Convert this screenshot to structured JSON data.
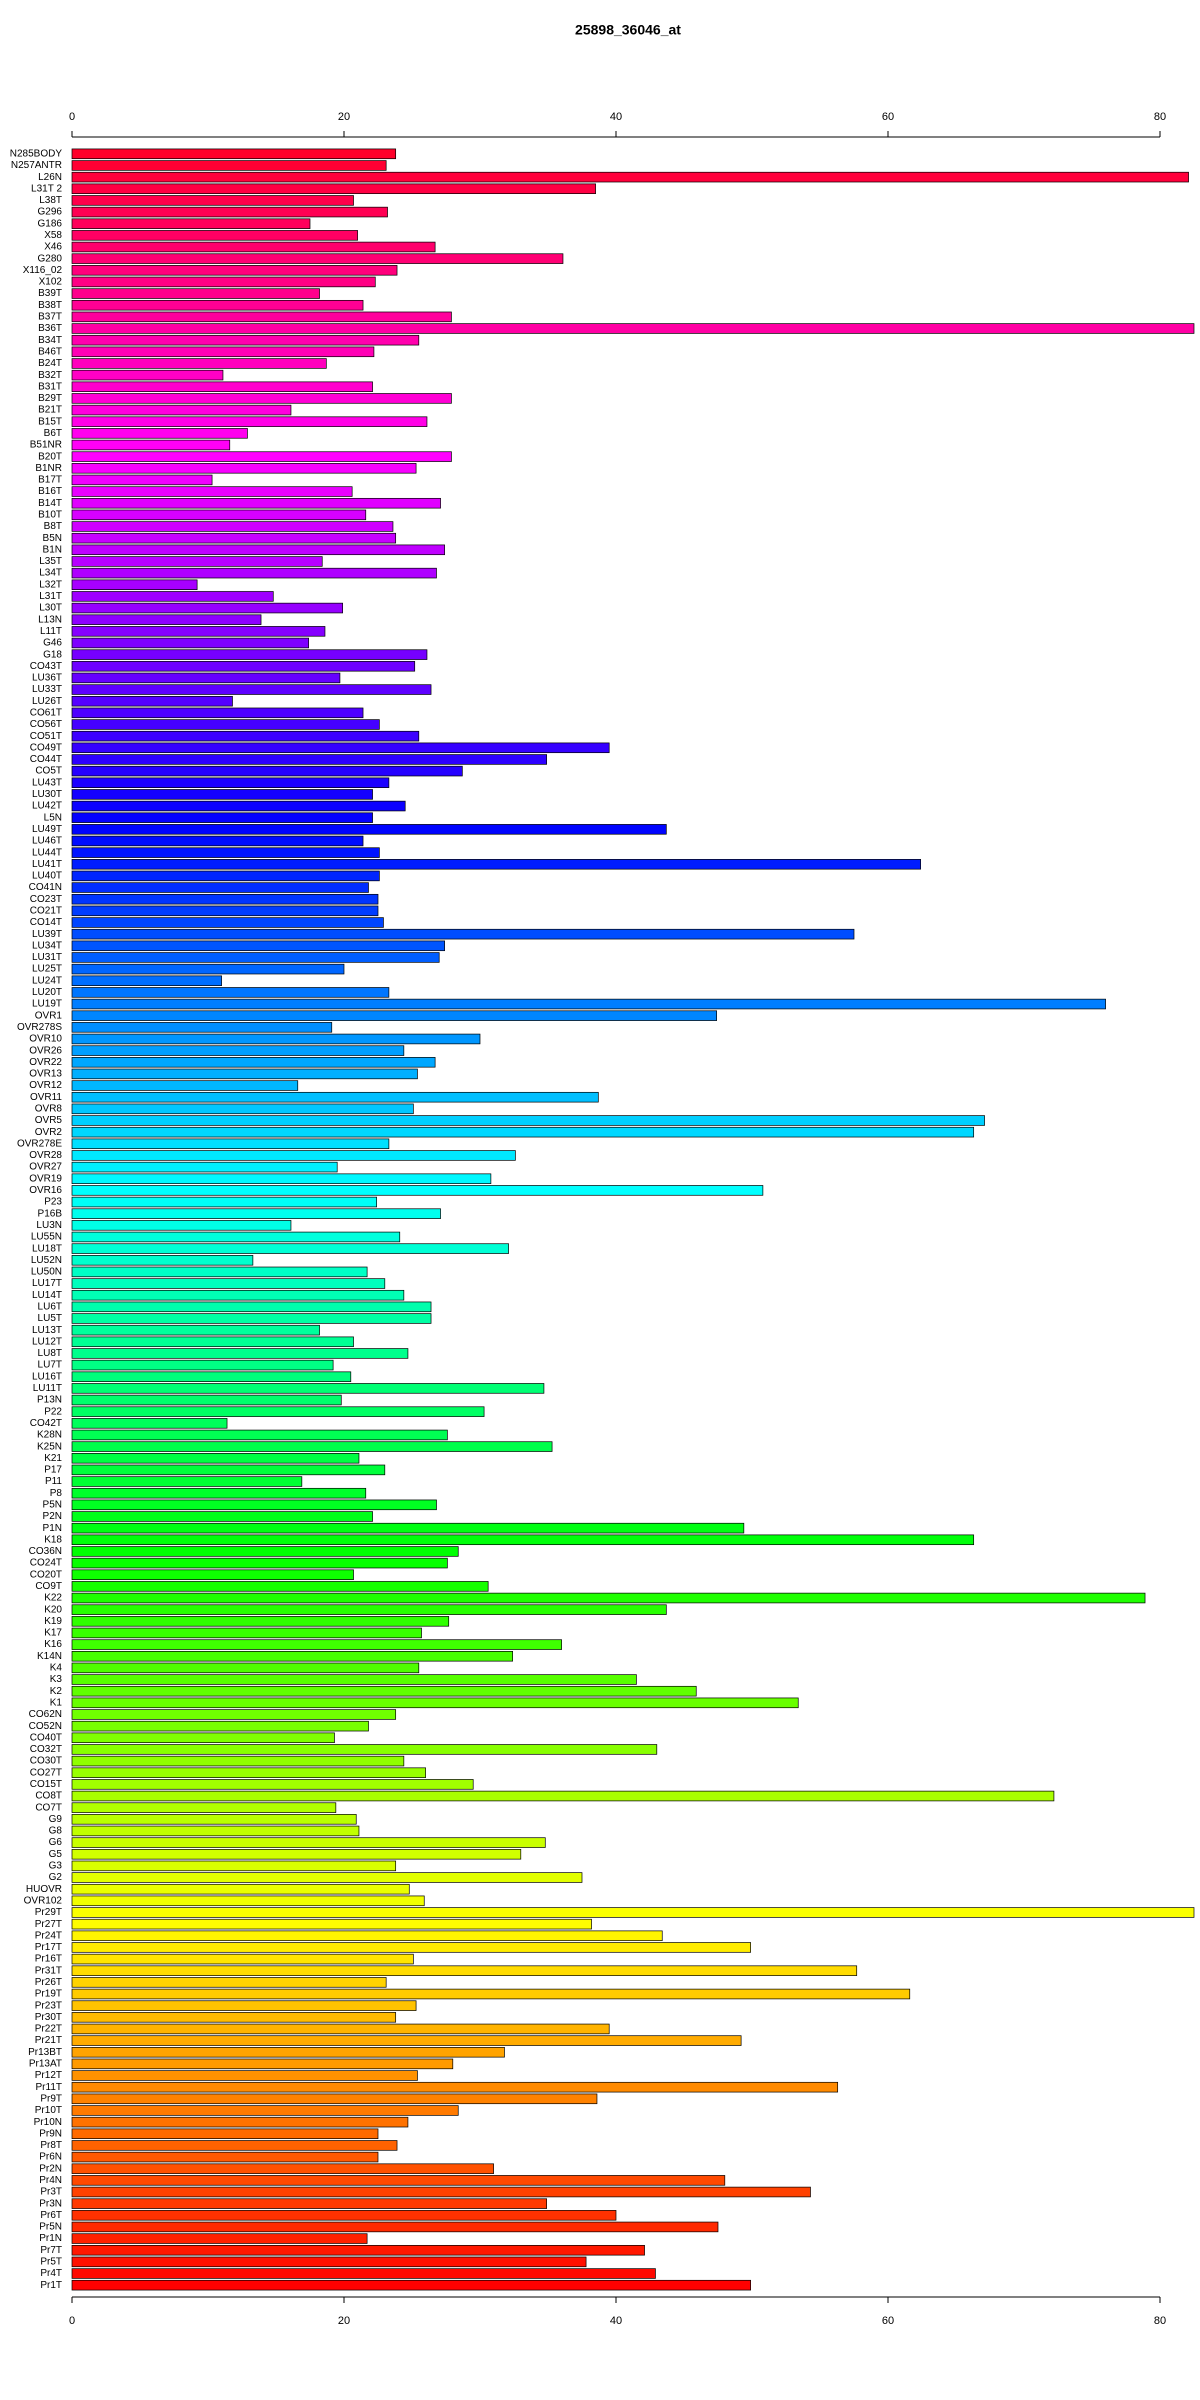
{
  "chart_data": {
    "type": "barh",
    "title": "25898_36046_at",
    "categories": [
      "N285BODY",
      "N257ANTR",
      "L26N",
      "L31T 2",
      "L38T",
      "G296",
      "G186",
      "X58",
      "X46",
      "G280",
      "X116_02",
      "X102",
      "B39T",
      "B38T",
      "B37T",
      "B36T",
      "B34T",
      "B46T",
      "B24T",
      "B32T",
      "B31T",
      "B29T",
      "B21T",
      "B15T",
      "B6T",
      "B51NR",
      "B20T",
      "B1NR",
      "B17T",
      "B16T",
      "B14T",
      "B10T",
      "B8T",
      "B5N",
      "B1N",
      "L35T",
      "L34T",
      "L32T",
      "L31T",
      "L30T",
      "L13N",
      "L11T",
      "G46",
      "G18",
      "CO43T",
      "LU36T",
      "LU33T",
      "LU26T",
      "CO61T",
      "CO56T",
      "CO51T",
      "CO49T",
      "CO44T",
      "CO5T",
      "LU43T",
      "LU30T",
      "LU42T",
      "L5N",
      "LU49T",
      "LU46T",
      "LU44T",
      "LU41T",
      "LU40T",
      "CO41N",
      "CO23T",
      "CO21T",
      "CO14T",
      "LU39T",
      "LU34T",
      "LU31T",
      "LU25T",
      "LU24T",
      "LU20T",
      "LU19T",
      "OVR1",
      "OVR278S",
      "OVR10",
      "OVR26",
      "OVR22",
      "OVR13",
      "OVR12",
      "OVR11",
      "OVR8",
      "OVR5",
      "OVR2",
      "OVR278E",
      "OVR28",
      "OVR27",
      "OVR19",
      "OVR16",
      "P23",
      "P16B",
      "LU3N",
      "LU55N",
      "LU18T",
      "LU52N",
      "LU50N",
      "LU17T",
      "LU14T",
      "LU6T",
      "LU5T",
      "LU13T",
      "LU12T",
      "LU8T",
      "LU7T",
      "LU16T",
      "LU11T",
      "P13N",
      "P22",
      "CO42T",
      "K28N",
      "K25N",
      "K21",
      "P17",
      "P11",
      "P8",
      "P5N",
      "P2N",
      "P1N",
      "K18",
      "CO36N",
      "CO24T",
      "CO20T",
      "CO9T",
      "K22",
      "K20",
      "K19",
      "K17",
      "K16",
      "K14N",
      "K4",
      "K3",
      "K2",
      "K1",
      "CO62N",
      "CO52N",
      "CO40T",
      "CO32T",
      "CO30T",
      "CO27T",
      "CO15T",
      "CO8T",
      "CO7T",
      "G9",
      "G8",
      "G6",
      "G5",
      "G3",
      "G2",
      "HUOVR",
      "OVR102",
      "Pr29T",
      "Pr27T",
      "Pr24T",
      "Pr17T",
      "Pr16T",
      "Pr31T",
      "Pr26T",
      "Pr19T",
      "Pr23T",
      "Pr30T",
      "Pr22T",
      "Pr21T",
      "Pr13BT",
      "Pr13AT",
      "Pr12T",
      "Pr11T",
      "Pr9T",
      "Pr10T",
      "Pr10N",
      "Pr9N",
      "Pr8T",
      "Pr6N",
      "Pr2N",
      "Pr4N",
      "Pr3T",
      "Pr3N",
      "Pr6T",
      "Pr5N",
      "Pr1N",
      "Pr7T",
      "Pr5T",
      "Pr4T",
      "Pr1T"
    ],
    "values": [
      23.8,
      23.1,
      82.1,
      38.5,
      20.7,
      23.2,
      17.5,
      21.0,
      26.7,
      36.1,
      23.9,
      22.3,
      18.2,
      21.4,
      27.9,
      82.5,
      25.5,
      22.2,
      18.7,
      11.1,
      22.1,
      27.9,
      16.1,
      26.1,
      12.9,
      11.6,
      27.9,
      25.3,
      10.3,
      20.6,
      27.1,
      21.6,
      23.6,
      23.8,
      27.4,
      18.4,
      26.8,
      9.2,
      14.8,
      19.9,
      13.9,
      18.6,
      17.4,
      26.1,
      25.2,
      19.7,
      26.4,
      11.8,
      21.4,
      22.6,
      25.5,
      39.5,
      34.9,
      28.7,
      23.3,
      22.1,
      24.5,
      22.1,
      43.7,
      21.4,
      22.6,
      62.4,
      22.6,
      21.8,
      22.5,
      22.5,
      22.9,
      57.5,
      27.4,
      27.0,
      20.0,
      11.0,
      23.3,
      76.0,
      47.4,
      19.1,
      30.0,
      24.4,
      26.7,
      25.4,
      16.6,
      38.7,
      25.1,
      67.1,
      66.3,
      23.3,
      32.6,
      19.5,
      30.8,
      50.8,
      22.4,
      27.1,
      16.1,
      24.1,
      32.1,
      13.3,
      21.7,
      23.0,
      24.4,
      26.4,
      26.4,
      18.2,
      20.7,
      24.7,
      19.2,
      20.5,
      34.7,
      19.8,
      30.3,
      11.4,
      27.6,
      35.3,
      21.1,
      23.0,
      16.9,
      21.6,
      26.8,
      22.1,
      49.4,
      66.3,
      28.4,
      27.6,
      20.7,
      30.6,
      78.9,
      43.7,
      27.7,
      25.7,
      36.0,
      32.4,
      25.5,
      41.5,
      45.9,
      53.4,
      23.8,
      21.8,
      19.3,
      43.0,
      24.4,
      26.0,
      29.5,
      72.2,
      19.4,
      20.9,
      21.1,
      34.8,
      33.0,
      23.8,
      37.5,
      24.8,
      25.9,
      82.5,
      38.2,
      43.4,
      49.9,
      25.1,
      57.7,
      23.1,
      61.6,
      25.3,
      23.8,
      39.5,
      49.2,
      31.8,
      28.0,
      25.4,
      56.3,
      38.6,
      28.4,
      24.7,
      22.5,
      23.9,
      22.5,
      31.0,
      48.0,
      54.3,
      34.9,
      40.0,
      47.5,
      21.7,
      42.1,
      37.8,
      42.9,
      49.9
    ],
    "palette": "rainbow",
    "xlim": [
      0,
      82.5
    ],
    "xticks": [
      0,
      20,
      40,
      60,
      80
    ]
  }
}
